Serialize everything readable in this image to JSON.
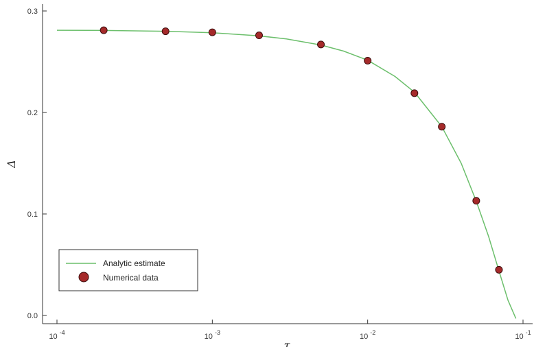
{
  "chart_data": {
    "type": "scatter",
    "title": "",
    "xlabel": "τ",
    "ylabel": "Δ",
    "xscale": "log",
    "xlim": [
      0.0001,
      0.1
    ],
    "ylim": [
      0.0,
      0.3
    ],
    "x_ticks": [
      {
        "value": 0.0001,
        "base": "10",
        "exp": "-4"
      },
      {
        "value": 0.001,
        "base": "10",
        "exp": "-3"
      },
      {
        "value": 0.01,
        "base": "10",
        "exp": "-2"
      },
      {
        "value": 0.1,
        "base": "10",
        "exp": "-1"
      }
    ],
    "y_ticks": [
      {
        "value": 0.0,
        "label": "0.0"
      },
      {
        "value": 0.1,
        "label": "0.1"
      },
      {
        "value": 0.2,
        "label": "0.2"
      },
      {
        "value": 0.3,
        "label": "0.3"
      }
    ],
    "grid": false,
    "legend_position": "bottom-left",
    "series": [
      {
        "name": "Analytic estimate",
        "type": "line",
        "color": "#6cbf6c",
        "x": [
          0.0001,
          0.0002,
          0.0005,
          0.001,
          0.002,
          0.003,
          0.005,
          0.007,
          0.01,
          0.015,
          0.02,
          0.03,
          0.04,
          0.05,
          0.06,
          0.07,
          0.08,
          0.09
        ],
        "y": [
          0.281,
          0.2808,
          0.28,
          0.2785,
          0.2755,
          0.2725,
          0.2665,
          0.2605,
          0.2515,
          0.2355,
          0.22,
          0.186,
          0.15,
          0.1125,
          0.078,
          0.044,
          0.015,
          -0.003
        ]
      },
      {
        "name": "Numerical data",
        "type": "scatter",
        "color": "#a52a2a",
        "x": [
          0.0002,
          0.0005,
          0.001,
          0.002,
          0.005,
          0.01,
          0.02,
          0.03,
          0.05,
          0.07
        ],
        "y": [
          0.281,
          0.28,
          0.279,
          0.276,
          0.267,
          0.251,
          0.219,
          0.186,
          0.113,
          0.045
        ]
      }
    ]
  }
}
